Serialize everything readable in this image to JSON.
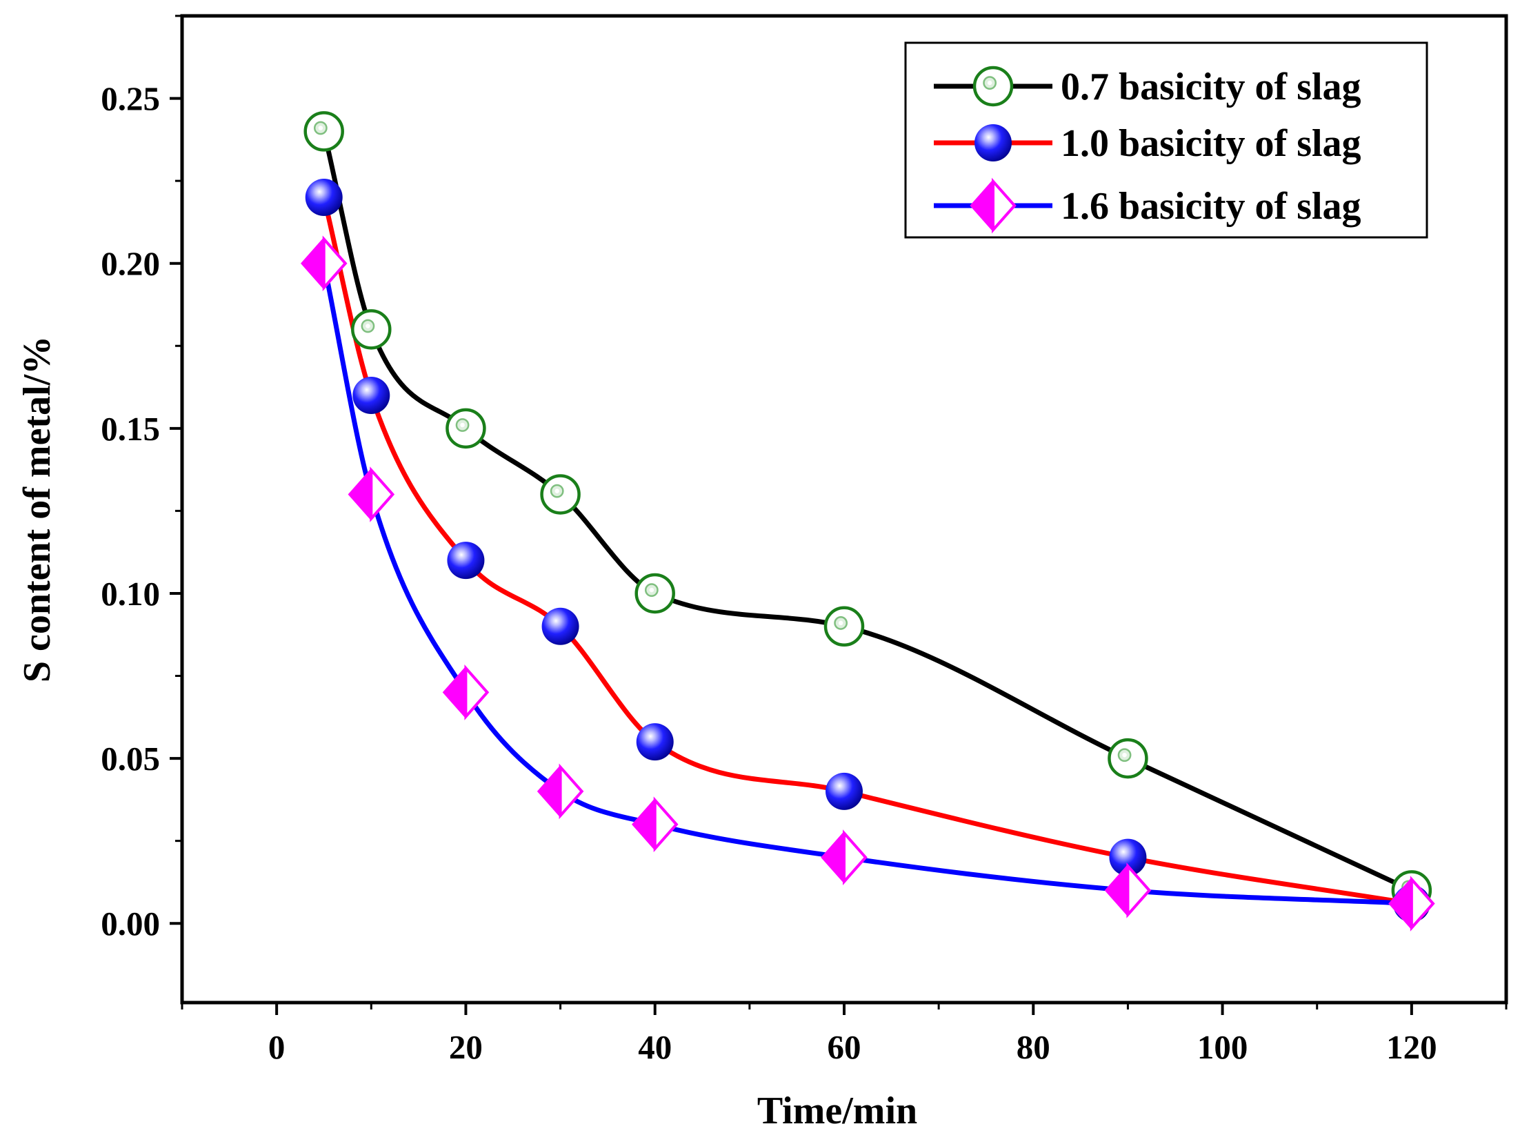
{
  "chart_data": {
    "type": "line",
    "title": "",
    "xlabel": "Time/min",
    "ylabel": "S content of metal/%",
    "xlim": [
      -10,
      130
    ],
    "ylim": [
      -0.024,
      0.275
    ],
    "xticks": [
      0,
      20,
      40,
      60,
      80,
      100,
      120
    ],
    "xtick_labels": [
      "0",
      "20",
      "40",
      "60",
      "80",
      "100",
      "120"
    ],
    "yticks": [
      0.0,
      0.05,
      0.1,
      0.15,
      0.2,
      0.25
    ],
    "ytick_labels": [
      "0.00",
      "0.05",
      "0.10",
      "0.15",
      "0.20",
      "0.25"
    ],
    "grid": false,
    "legend_position": "top-right",
    "x": [
      5,
      10,
      20,
      30,
      40,
      60,
      90,
      120
    ],
    "series": [
      {
        "name": "0.7 basicity of slag",
        "line_color": "#000000",
        "marker": "open-circle",
        "marker_color": "#1a7f1a",
        "values": [
          0.24,
          0.18,
          0.15,
          0.13,
          0.1,
          0.09,
          0.05,
          0.01
        ]
      },
      {
        "name": "1.0 basicity of slag",
        "line_color": "#ff0000",
        "marker": "blue-sphere",
        "marker_color": "#0000ee",
        "values": [
          0.22,
          0.16,
          0.11,
          0.09,
          0.055,
          0.04,
          0.02,
          0.006
        ]
      },
      {
        "name": "1.6 basicity of slag",
        "line_color": "#0000ff",
        "marker": "half-diamond",
        "marker_color": "#ff00ff",
        "values": [
          0.2,
          0.13,
          0.07,
          0.04,
          0.03,
          0.02,
          0.01,
          0.006
        ]
      }
    ]
  }
}
